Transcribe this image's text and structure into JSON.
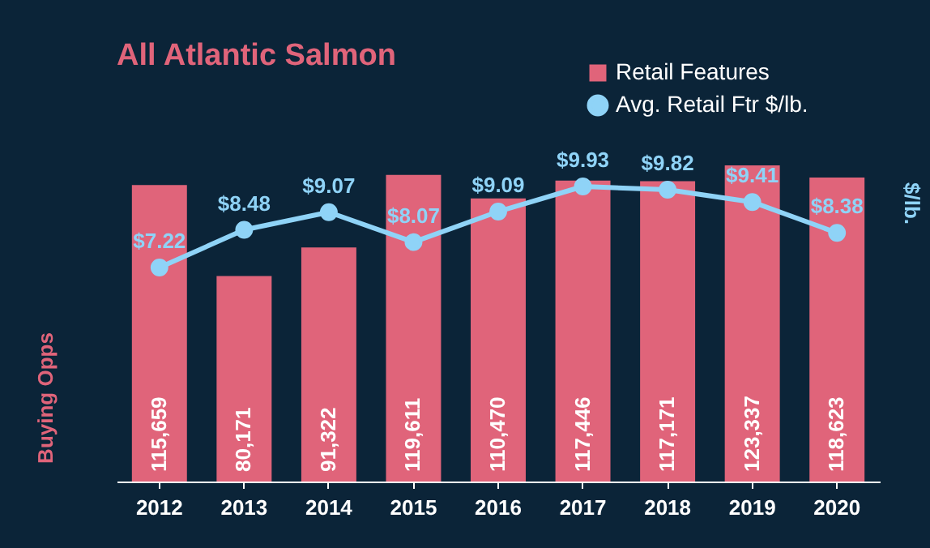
{
  "chart_data": {
    "type": "bar",
    "title": "All Atlantic Salmon",
    "ylabel": "Buying Opps",
    "y2label": "$/lb.",
    "categories": [
      "2012",
      "2013",
      "2014",
      "2015",
      "2016",
      "2017",
      "2018",
      "2019",
      "2020"
    ],
    "series": [
      {
        "name": "Retail Features",
        "color": "#e0647a",
        "values": [
          115659,
          80171,
          91322,
          119611,
          110470,
          117446,
          117171,
          123337,
          118623
        ],
        "value_labels": [
          "115,659",
          "80,171",
          "91,322",
          "119,611",
          "110,470",
          "117,446",
          "117,171",
          "123,337",
          "118,623"
        ]
      },
      {
        "name": "Avg. Retail Ftr $/lb.",
        "type": "line",
        "axis": "y2",
        "color": "#8fd3f7",
        "marker": "circle",
        "line_style": "solid",
        "values": [
          7.22,
          8.48,
          9.07,
          8.07,
          9.09,
          9.93,
          9.82,
          9.41,
          8.38
        ],
        "value_labels": [
          "$7.22",
          "$8.48",
          "$9.07",
          "$8.07",
          "$9.09",
          "$9.93",
          "$9.82",
          "$9.41",
          "$8.38"
        ]
      }
    ],
    "tick_labels": "x",
    "grid": false,
    "legend": "top right"
  }
}
